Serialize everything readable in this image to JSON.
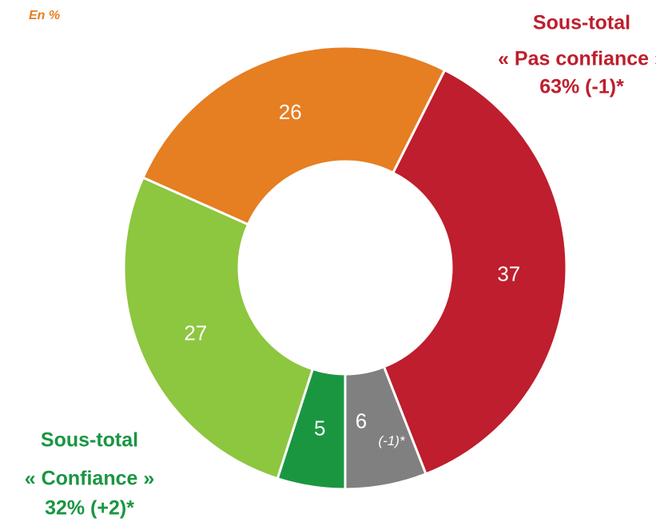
{
  "chart_data": {
    "type": "donut",
    "unit_note": "En %",
    "values": [
      37,
      6,
      5,
      27,
      26
    ],
    "colors": [
      "#be1e2d",
      "#808080",
      "#1a9641",
      "#8dc63f",
      "#e67e22"
    ],
    "segment_notes": [
      null,
      "(-1)*",
      null,
      null,
      null
    ],
    "annotations": {
      "distrust": {
        "title": "Sous-total",
        "line": "« Pas confiance »",
        "value": "63% (-1)*"
      },
      "trust": {
        "title": "Sous-total",
        "line": "« Confiance »",
        "value": "32% (+2)*"
      }
    }
  }
}
